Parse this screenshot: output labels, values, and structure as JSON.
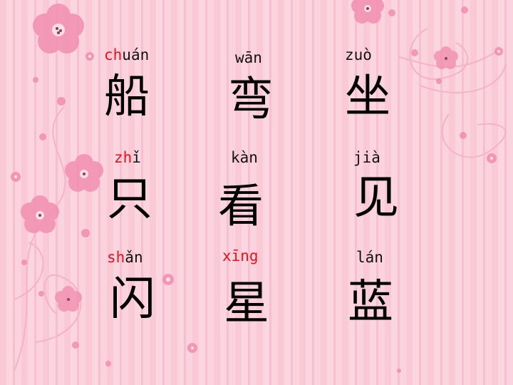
{
  "colors": {
    "initial": "#e8111a",
    "text": "#000000",
    "flower": "#f28fb1",
    "flower_center": "#6a2a3a",
    "swirl": "#f4b3c8"
  },
  "characters": [
    {
      "initial": "ch",
      "final": "uán",
      "hanzi": "船"
    },
    {
      "initial": "",
      "final": "wān",
      "hanzi": "弯"
    },
    {
      "initial": "",
      "final": "zuò",
      "hanzi": "坐"
    },
    {
      "initial": "zh",
      "final": "ǐ",
      "hanzi": "只"
    },
    {
      "initial": "",
      "final": "kàn",
      "hanzi": "看"
    },
    {
      "initial": "",
      "final": "jià",
      "hanzi": "见"
    },
    {
      "initial": "sh",
      "final": "ǎn",
      "hanzi": "闪"
    },
    {
      "initial": "",
      "final": "xīng",
      "hanzi": "星"
    },
    {
      "initial": "",
      "final": "lán",
      "hanzi": "蓝"
    }
  ]
}
